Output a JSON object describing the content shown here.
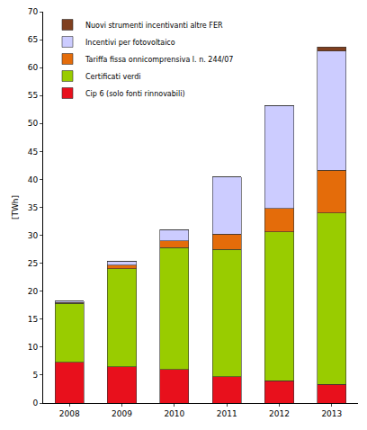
{
  "chart_data": {
    "type": "bar",
    "stacked": true,
    "y_label": "[TWh]",
    "categories": [
      "2008",
      "2009",
      "2010",
      "2011",
      "2012",
      "2013"
    ],
    "series": [
      {
        "name": "Cip 6 (solo fonti rinnovabili)",
        "color": "#e8101c",
        "values": [
          7.3,
          6.5,
          6.0,
          4.7,
          4.0,
          3.3
        ]
      },
      {
        "name": "Certificati verdi",
        "color": "#99cc00",
        "values": [
          10.5,
          17.5,
          21.8,
          22.8,
          26.6,
          30.7
        ]
      },
      {
        "name": "Tariffa fissa onnicomprensiva l. n. 244/07",
        "color": "#e46c0a",
        "values": [
          0.2,
          0.7,
          1.2,
          2.7,
          4.2,
          7.6
        ]
      },
      {
        "name": "Incentivi per fotovoltaico",
        "color": "#ccccff",
        "values": [
          0.2,
          0.7,
          2.0,
          10.2,
          18.4,
          21.4
        ]
      },
      {
        "name": "Nuovi strumenti incentivanti altre FER",
        "color": "#7f3f1f",
        "values": [
          0,
          0,
          0,
          0,
          0,
          0.7
        ]
      }
    ],
    "ylim": [
      0,
      70
    ],
    "yticks": [
      0,
      5,
      10,
      15,
      20,
      25,
      30,
      35,
      40,
      45,
      50,
      55,
      60,
      65,
      70
    ],
    "grid": false,
    "legend": "top-left"
  }
}
